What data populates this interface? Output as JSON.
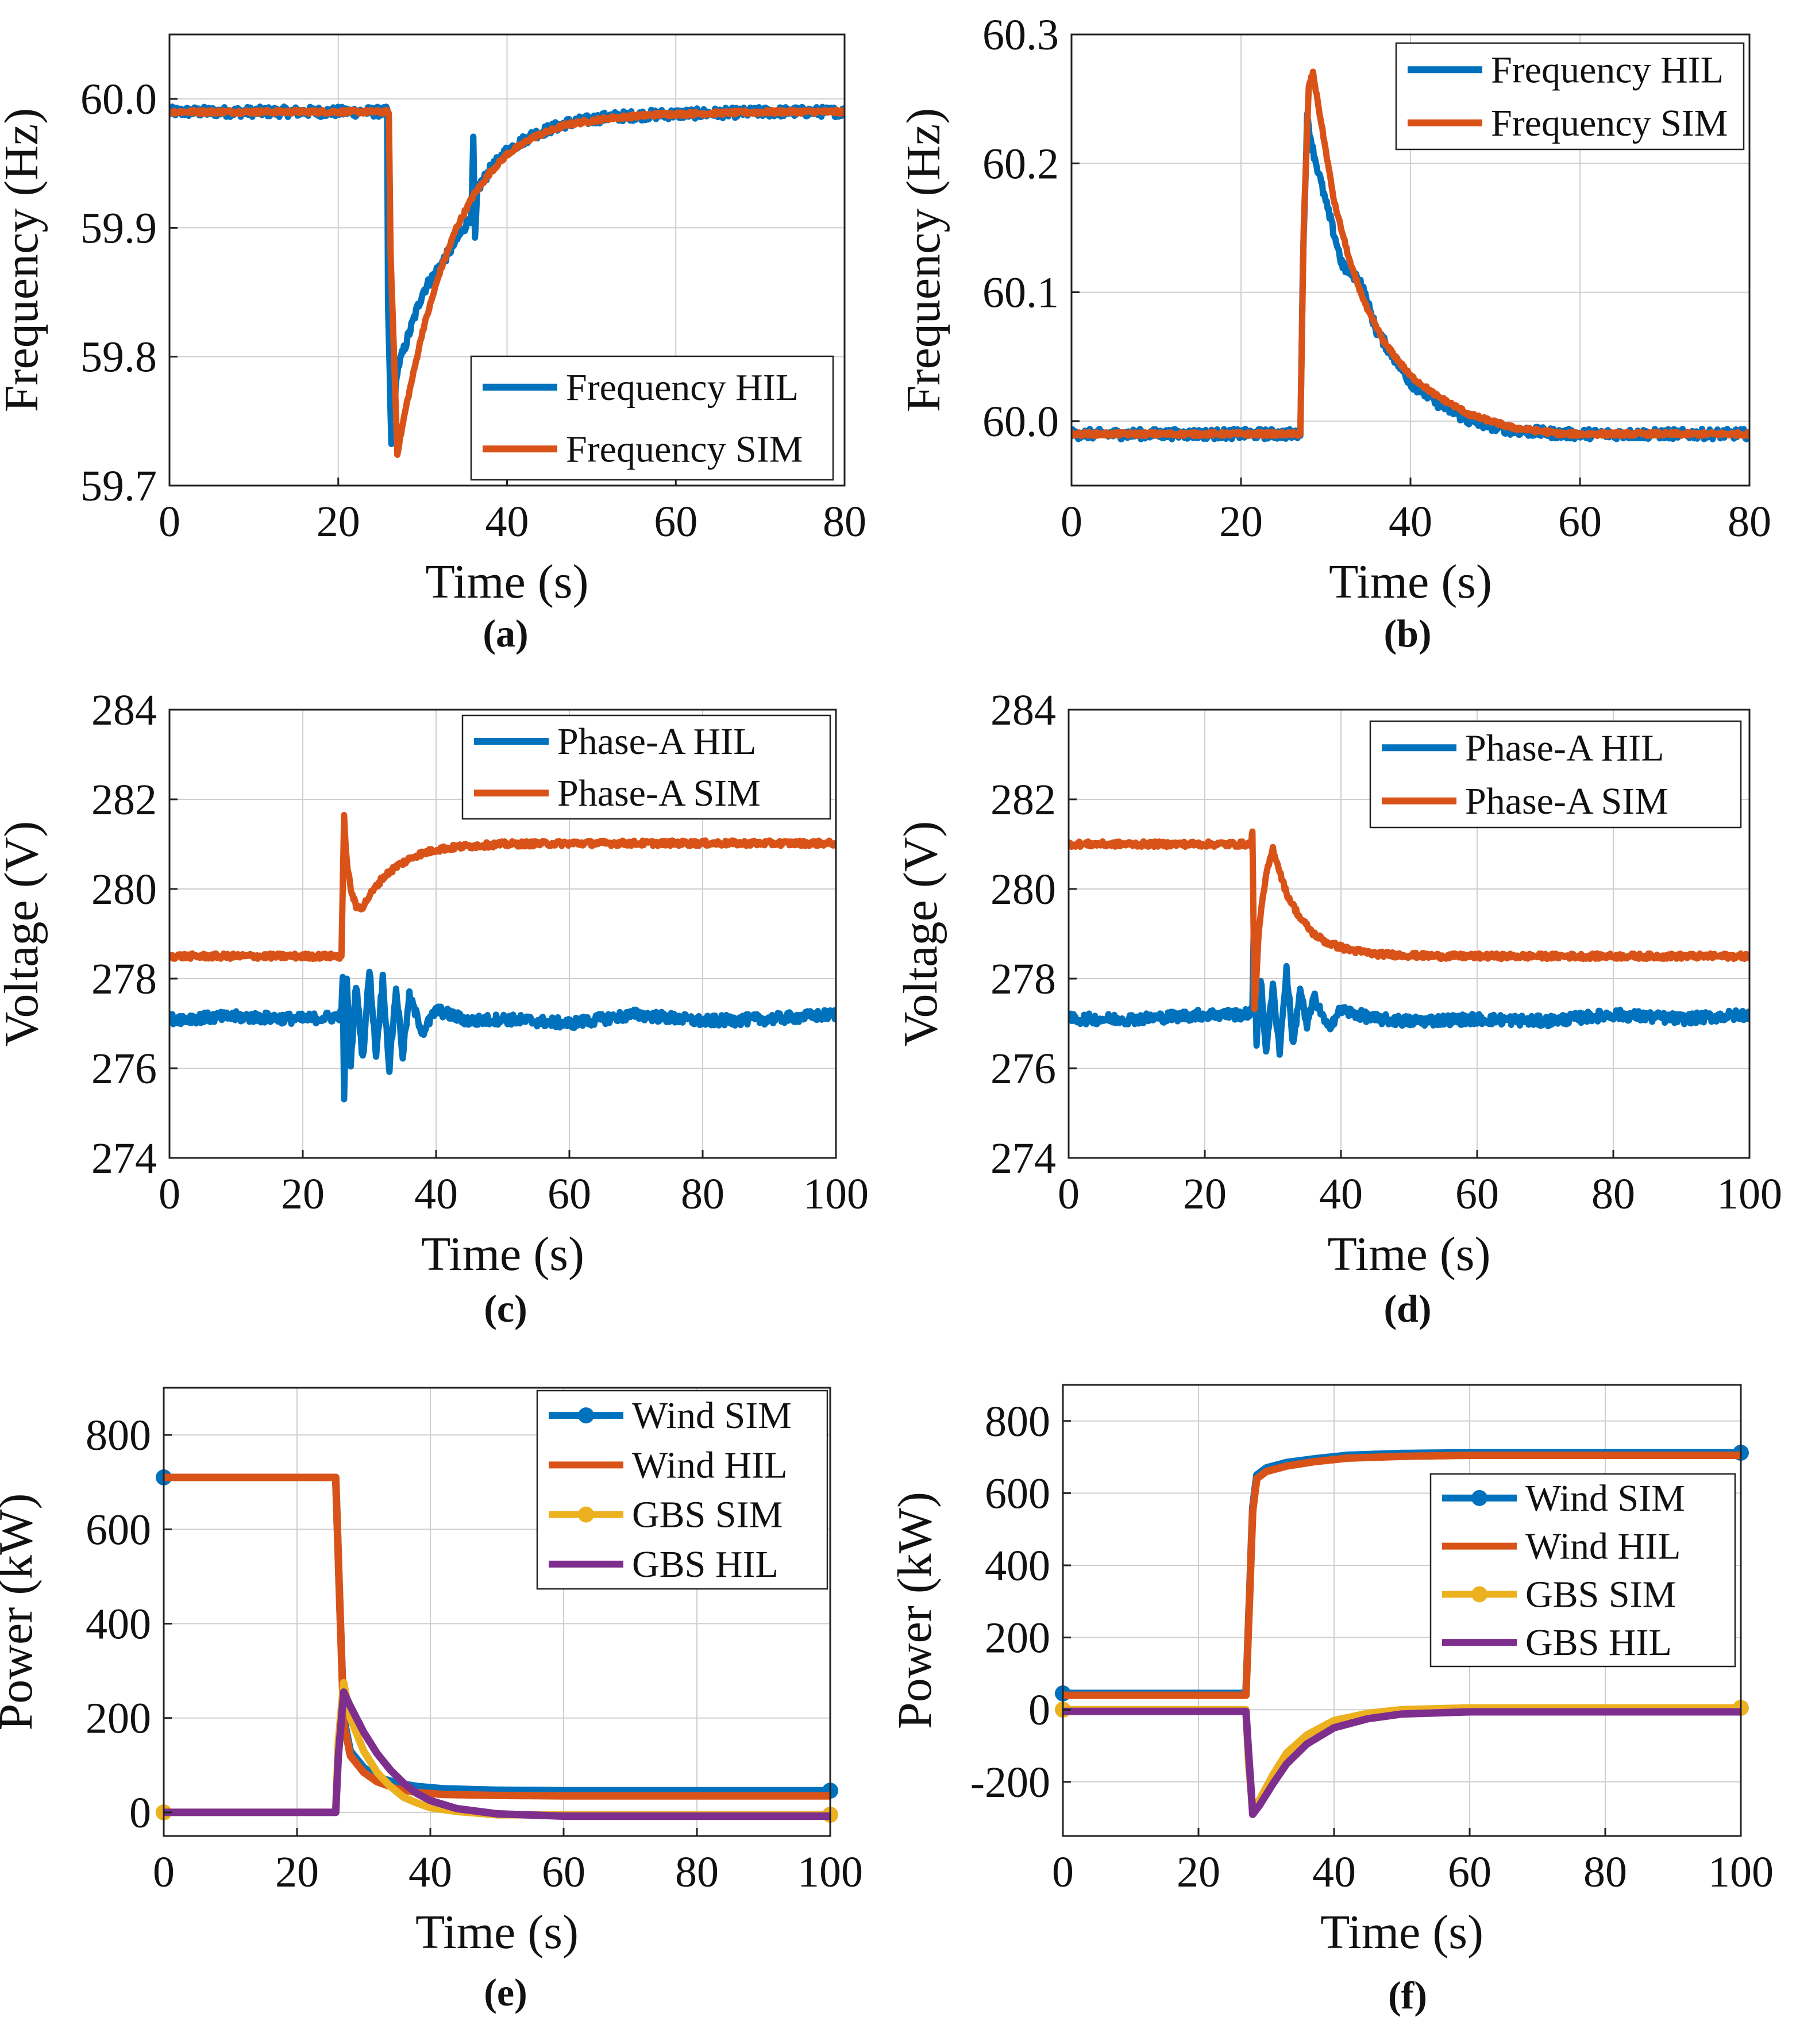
{
  "colors": {
    "blue": "#0072BD",
    "orange": "#D95319",
    "yellow": "#EDB120",
    "purple": "#7E2F8E",
    "grid": "#cfcfcf",
    "axis": "#222222"
  },
  "chart_data": [
    {
      "id": "a",
      "caption": "(a)",
      "type": "line",
      "xlabel": "Time (s)",
      "ylabel": "Frequency (Hz)",
      "xlim": [
        0,
        80
      ],
      "ylim": [
        59.7,
        60.05
      ],
      "xticks": [
        0,
        20,
        40,
        60,
        80
      ],
      "yticks": [
        59.7,
        59.8,
        59.9,
        60.0
      ],
      "tick_labels_x": [
        "0",
        "20",
        "40",
        "60",
        "80"
      ],
      "tick_labels_y": [
        "59.7",
        "59.8",
        "59.9",
        "60.0"
      ],
      "legend_position": "bottom-right",
      "series": [
        {
          "name": "Frequency HIL",
          "color": "blue",
          "noise": 0.004,
          "marker": false,
          "x": [
            0,
            25.8,
            25.9,
            26.3,
            27,
            28,
            30,
            32,
            34,
            35.8,
            36,
            36.2,
            36.5,
            38,
            40,
            43,
            47,
            52,
            58,
            65,
            72,
            80
          ],
          "y": [
            59.99,
            59.99,
            59.84,
            59.73,
            59.79,
            59.81,
            59.85,
            59.87,
            59.89,
            59.91,
            59.97,
            59.89,
            59.93,
            59.945,
            59.96,
            59.972,
            59.981,
            59.986,
            59.988,
            59.989,
            59.99,
            59.99
          ]
        },
        {
          "name": "Frequency SIM",
          "color": "orange",
          "noise": 0.0015,
          "marker": false,
          "x": [
            0,
            26,
            26.2,
            27,
            28,
            30,
            32,
            34,
            36,
            38,
            40,
            43,
            47,
            52,
            58,
            65,
            72,
            80
          ],
          "y": [
            59.99,
            59.99,
            59.88,
            59.725,
            59.76,
            59.82,
            59.865,
            59.9,
            59.925,
            59.943,
            59.957,
            59.97,
            59.98,
            59.985,
            59.988,
            59.989,
            59.99,
            59.99
          ]
        }
      ]
    },
    {
      "id": "b",
      "caption": "(b)",
      "type": "line",
      "xlabel": "Time (s)",
      "ylabel": "Frequency (Hz)",
      "xlim": [
        0,
        80
      ],
      "ylim": [
        59.95,
        60.3
      ],
      "xticks": [
        0,
        20,
        40,
        60,
        80
      ],
      "yticks": [
        60.0,
        60.1,
        60.2,
        60.3
      ],
      "tick_labels_x": [
        "0",
        "20",
        "40",
        "60",
        "80"
      ],
      "tick_labels_y": [
        "60.0",
        "60.1",
        "60.2",
        "60.3"
      ],
      "legend_position": "top-right",
      "series": [
        {
          "name": "Frequency HIL",
          "color": "blue",
          "noise": 0.004,
          "marker": false,
          "x": [
            0,
            27,
            27.3,
            27.8,
            28.5,
            30,
            32,
            34,
            36,
            38,
            40,
            43,
            47,
            52,
            58,
            65,
            72,
            80
          ],
          "y": [
            59.99,
            59.99,
            60.12,
            60.235,
            60.21,
            60.17,
            60.12,
            60.11,
            60.07,
            60.05,
            60.03,
            60.015,
            60.0,
            59.993,
            59.99,
            59.99,
            59.99,
            59.99
          ]
        },
        {
          "name": "Frequency SIM",
          "color": "orange",
          "noise": 0.0015,
          "marker": false,
          "x": [
            0,
            27,
            27.4,
            28,
            28.5,
            29.5,
            31,
            33,
            35,
            37,
            40,
            43,
            47,
            52,
            58,
            65,
            72,
            80
          ],
          "y": [
            59.99,
            59.99,
            60.15,
            60.26,
            60.27,
            60.23,
            60.17,
            60.12,
            60.085,
            60.06,
            60.035,
            60.02,
            60.005,
            59.995,
            59.99,
            59.99,
            59.99,
            59.99
          ]
        }
      ]
    },
    {
      "id": "c",
      "caption": "(c)",
      "type": "line",
      "xlabel": "Time (s)",
      "ylabel": "Voltage (V)",
      "xlim": [
        0,
        100
      ],
      "ylim": [
        274,
        284
      ],
      "xticks": [
        0,
        20,
        40,
        60,
        80,
        100
      ],
      "yticks": [
        274,
        276,
        278,
        280,
        282,
        284
      ],
      "tick_labels_x": [
        "0",
        "20",
        "40",
        "60",
        "80",
        "100"
      ],
      "tick_labels_y": [
        "274",
        "276",
        "278",
        "280",
        "282",
        "284"
      ],
      "legend_position": "top-right",
      "series": [
        {
          "name": "Phase-A HIL",
          "color": "blue",
          "noise": 0.12,
          "marker": false,
          "x": [
            0,
            10,
            20,
            25,
            25.8,
            26,
            26.2,
            26.6,
            27.2,
            28,
            29,
            30,
            31,
            32,
            33,
            34,
            35,
            36,
            38,
            40,
            45,
            50,
            60,
            70,
            80,
            90,
            100
          ],
          "y": [
            277.1,
            277.15,
            277.1,
            277.15,
            277.2,
            278.1,
            275.2,
            278.0,
            276.1,
            277.9,
            276.2,
            278.2,
            276.3,
            278.0,
            276.0,
            277.8,
            276.3,
            277.6,
            276.8,
            277.3,
            277.05,
            277.1,
            277.0,
            277.2,
            277.05,
            277.1,
            277.2
          ]
        },
        {
          "name": "Phase-A SIM",
          "color": "orange",
          "noise": 0.06,
          "marker": false,
          "x": [
            0,
            25.8,
            26,
            26.2,
            26.6,
            27.2,
            28,
            29,
            30,
            32,
            34,
            37,
            40,
            44,
            50,
            60,
            80,
            100
          ],
          "y": [
            278.5,
            278.5,
            280.0,
            281.6,
            280.6,
            280.0,
            279.6,
            279.6,
            279.85,
            280.25,
            280.5,
            280.75,
            280.88,
            280.95,
            281.0,
            281.02,
            281.02,
            281.02
          ]
        }
      ]
    },
    {
      "id": "d",
      "caption": "(d)",
      "type": "line",
      "xlabel": "Time (s)",
      "ylabel": "Voltage (V)",
      "xlim": [
        0,
        100
      ],
      "ylim": [
        274,
        284
      ],
      "xticks": [
        0,
        20,
        40,
        60,
        80,
        100
      ],
      "yticks": [
        274,
        276,
        278,
        280,
        282,
        284
      ],
      "tick_labels_x": [
        "0",
        "20",
        "40",
        "60",
        "80",
        "100"
      ],
      "tick_labels_y": [
        "274",
        "276",
        "278",
        "280",
        "282",
        "284"
      ],
      "legend_position": "top-right",
      "series": [
        {
          "name": "Phase-A HIL",
          "color": "blue",
          "noise": 0.12,
          "marker": false,
          "x": [
            0,
            10,
            20,
            26,
            27,
            27.2,
            27.6,
            28.2,
            29,
            30,
            31,
            32,
            33,
            34,
            35,
            36,
            38,
            40,
            45,
            50,
            60,
            70,
            80,
            90,
            100
          ],
          "y": [
            277.1,
            277.1,
            277.2,
            277.2,
            277.3,
            279.2,
            276.6,
            278.0,
            276.4,
            277.8,
            276.4,
            278.2,
            276.5,
            277.8,
            276.9,
            277.6,
            276.9,
            277.3,
            277.1,
            277.05,
            277.1,
            277.05,
            277.2,
            277.1,
            277.2
          ]
        },
        {
          "name": "Phase-A SIM",
          "color": "orange",
          "noise": 0.06,
          "marker": false,
          "x": [
            0,
            26.8,
            27,
            27.3,
            28,
            29,
            30,
            31,
            32,
            34,
            36,
            38,
            41,
            45,
            50,
            55,
            60,
            80,
            100
          ],
          "y": [
            281.0,
            281.0,
            281.3,
            277.3,
            279.2,
            280.3,
            280.9,
            280.4,
            279.9,
            279.35,
            279.0,
            278.8,
            278.65,
            278.55,
            278.52,
            278.5,
            278.5,
            278.5,
            278.5
          ]
        }
      ]
    },
    {
      "id": "e",
      "caption": "(e)",
      "type": "line",
      "xlabel": "Time (s)",
      "ylabel": "Power (kW)",
      "xlim": [
        0,
        100
      ],
      "ylim": [
        -50,
        900
      ],
      "xticks": [
        0,
        20,
        40,
        60,
        80,
        100
      ],
      "yticks": [
        0,
        200,
        400,
        600,
        800
      ],
      "tick_labels_x": [
        "0",
        "20",
        "40",
        "60",
        "80",
        "100"
      ],
      "tick_labels_y": [
        "0",
        "200",
        "400",
        "600",
        "800"
      ],
      "legend_position": "top-right",
      "series": [
        {
          "name": "Wind SIM",
          "color": "blue",
          "noise": 0,
          "marker": true,
          "x": [
            0,
            25.8,
            26.4,
            27,
            28,
            30,
            32,
            35,
            38,
            42,
            50,
            60,
            80,
            100
          ],
          "y": [
            710,
            710,
            450,
            200,
            130,
            95,
            75,
            62,
            55,
            50,
            47,
            46,
            46,
            46
          ]
        },
        {
          "name": "Wind HIL",
          "color": "orange",
          "noise": 0,
          "marker": false,
          "x": [
            0,
            25.8,
            26.4,
            27,
            28,
            30,
            32,
            35,
            38,
            42,
            50,
            60,
            80,
            100
          ],
          "y": [
            710,
            710,
            450,
            190,
            120,
            85,
            65,
            50,
            42,
            38,
            36,
            35,
            35,
            35
          ]
        },
        {
          "name": "GBS SIM",
          "color": "yellow",
          "noise": 0,
          "marker": true,
          "x": [
            0,
            25.8,
            26.2,
            27,
            28,
            30,
            32,
            34,
            36,
            38,
            40,
            44,
            50,
            60,
            80,
            100
          ],
          "y": [
            0,
            0,
            150,
            275,
            200,
            130,
            85,
            55,
            32,
            20,
            10,
            2,
            -5,
            -5,
            -5,
            -5
          ]
        },
        {
          "name": "GBS HIL",
          "color": "purple",
          "noise": 0,
          "marker": false,
          "x": [
            0,
            25.8,
            26.2,
            27,
            28,
            30,
            32,
            34,
            36,
            38,
            40,
            44,
            50,
            60,
            80,
            100
          ],
          "y": [
            0,
            0,
            120,
            255,
            225,
            170,
            125,
            90,
            62,
            40,
            25,
            8,
            -3,
            -8,
            -8,
            -8
          ]
        }
      ]
    },
    {
      "id": "f",
      "caption": "(f)",
      "type": "line",
      "xlabel": "Time (s)",
      "ylabel": "Power (kW)",
      "xlim": [
        0,
        100
      ],
      "ylim": [
        -350,
        900
      ],
      "xticks": [
        0,
        20,
        40,
        60,
        80,
        100
      ],
      "yticks": [
        -200,
        0,
        200,
        400,
        600,
        800
      ],
      "tick_labels_x": [
        "0",
        "20",
        "40",
        "60",
        "80",
        "100"
      ],
      "tick_labels_y": [
        "-200",
        "0",
        "200",
        "400",
        "600",
        "800"
      ],
      "legend_position": "right",
      "series": [
        {
          "name": "Wind SIM",
          "color": "blue",
          "noise": 0,
          "marker": true,
          "x": [
            0,
            27,
            27.5,
            28,
            28.6,
            30,
            33,
            37,
            42,
            50,
            60,
            80,
            100
          ],
          "y": [
            45,
            45,
            300,
            560,
            650,
            670,
            685,
            695,
            705,
            710,
            712,
            712,
            712
          ]
        },
        {
          "name": "Wind HIL",
          "color": "orange",
          "noise": 0,
          "marker": false,
          "x": [
            0,
            27,
            27.5,
            28,
            28.6,
            30,
            33,
            37,
            42,
            50,
            60,
            80,
            100
          ],
          "y": [
            40,
            40,
            290,
            550,
            640,
            660,
            675,
            687,
            697,
            702,
            705,
            705,
            705
          ]
        },
        {
          "name": "GBS SIM",
          "color": "yellow",
          "noise": 0,
          "marker": true,
          "x": [
            0,
            27,
            27.4,
            28,
            29,
            31,
            33,
            36,
            40,
            45,
            50,
            60,
            80,
            100
          ],
          "y": [
            0,
            0,
            -150,
            -280,
            -250,
            -180,
            -120,
            -70,
            -30,
            -10,
            0,
            5,
            5,
            5
          ]
        },
        {
          "name": "GBS HIL",
          "color": "purple",
          "noise": 0,
          "marker": false,
          "x": [
            0,
            27,
            27.4,
            28,
            29,
            31,
            33,
            36,
            40,
            45,
            50,
            60,
            80,
            100
          ],
          "y": [
            -5,
            -5,
            -120,
            -290,
            -265,
            -205,
            -150,
            -95,
            -50,
            -25,
            -12,
            -6,
            -6,
            -6
          ]
        }
      ]
    }
  ]
}
